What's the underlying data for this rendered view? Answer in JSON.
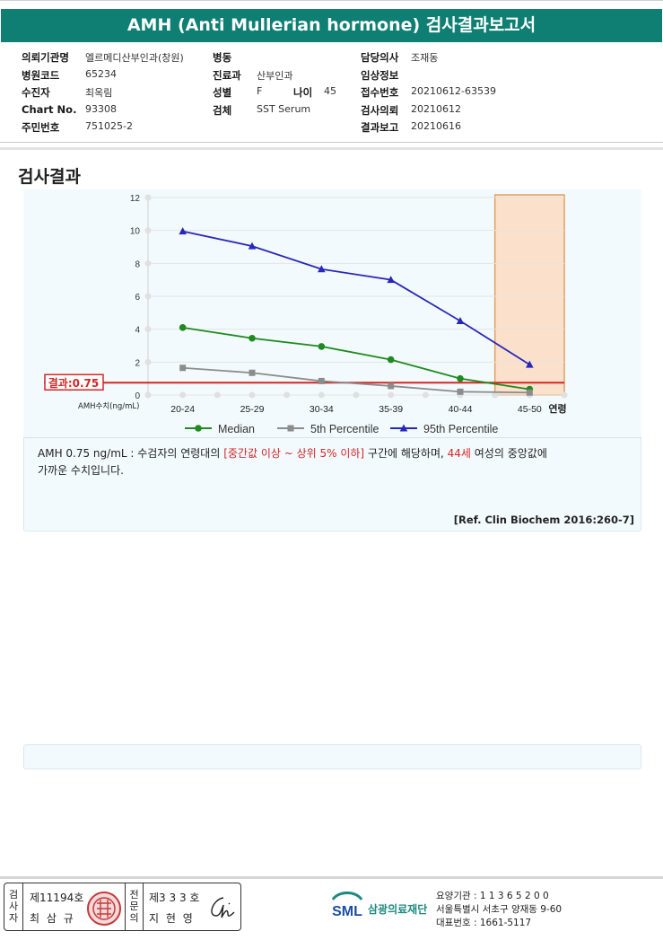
{
  "report": {
    "title": "AMH (Anti Mullerian hormone) 검사결과보고서"
  },
  "info": {
    "institution_label": "의뢰기관명",
    "institution": "엘르메디산부인과(창원)",
    "hospital_code_label": "병원코드",
    "hospital_code": "65234",
    "patient_label": "수진자",
    "patient": "최옥림",
    "chart_no_label": "Chart No.",
    "chart_no": "93308",
    "resident_no_label": "주민번호",
    "resident_no": "751025-2",
    "ward_label": "병동",
    "ward": "",
    "department_label": "진료과",
    "department": "산부인과",
    "sex_label": "성별",
    "sex": "F",
    "age_label": "나이",
    "age": "45",
    "specimen_label": "검체",
    "specimen": "SST Serum",
    "doctor_label": "담당의사",
    "doctor": "조재동",
    "clinical_info_label": "임상정보",
    "clinical_info": "",
    "receipt_no_label": "접수번호",
    "receipt_no": "20210612-63539",
    "request_date_label": "검사의뢰",
    "request_date": "20210612",
    "report_date_label": "결과보고",
    "report_date": "20210616"
  },
  "section_title": "검사결과",
  "chart_data": {
    "type": "line",
    "categories": [
      "20-24",
      "25-29",
      "30-34",
      "35-39",
      "40-44",
      "45-50"
    ],
    "xlabel": "연령",
    "ylabel": "AMH수치(ng/mL)",
    "ylim": [
      0,
      12
    ],
    "yticks": [
      0,
      2,
      4,
      6,
      8,
      10,
      12
    ],
    "grid": true,
    "legend_position": "bottom",
    "highlight_category": "45-50",
    "result_line": {
      "value": 0.75,
      "label": "결과:0.75",
      "color": "#d32626"
    },
    "series": [
      {
        "name": "Median",
        "color": "#1f8a1f",
        "marker": "circle",
        "values": [
          4.1,
          3.45,
          2.95,
          2.15,
          1.0,
          0.35
        ]
      },
      {
        "name": "5th Percentile",
        "color": "#8c8c8c",
        "marker": "square",
        "values": [
          1.65,
          1.35,
          0.85,
          0.55,
          0.2,
          0.15
        ]
      },
      {
        "name": "95th Percentile",
        "color": "#2828b8",
        "marker": "triangle",
        "values": [
          9.95,
          9.05,
          7.65,
          7.0,
          4.5,
          1.85
        ]
      }
    ]
  },
  "description": {
    "part1": "AMH  0.75 ng/mL : 수검자의 연령대의 ",
    "range": "[중간값 이상 ~ 상위 5% 이하]",
    "part2": " 구간에 해당하며, ",
    "age": "44세",
    "part3": " 여성의 중앙값에",
    "line2": "가까운 수치입니다."
  },
  "reference": "[Ref. Clin Biochem 2016:260-7]",
  "footer": {
    "examiner_label": "검사자",
    "examiner_no": "제11194호",
    "examiner_name": "최 삼 규",
    "receiver_label": "전문의",
    "receiver_no": "제3 3 3 호",
    "receiver_name": "지 현 영",
    "org_name": "삼광의료재단",
    "org_code": "요양기관 : 1 1 3 6 5 2 0 0",
    "org_address": "서울특별시 서초구 양재동 9-60",
    "org_phone": "대표번호 : 1661-5117",
    "logo_text": "SML",
    "brand_color": "#1c8a7f"
  }
}
